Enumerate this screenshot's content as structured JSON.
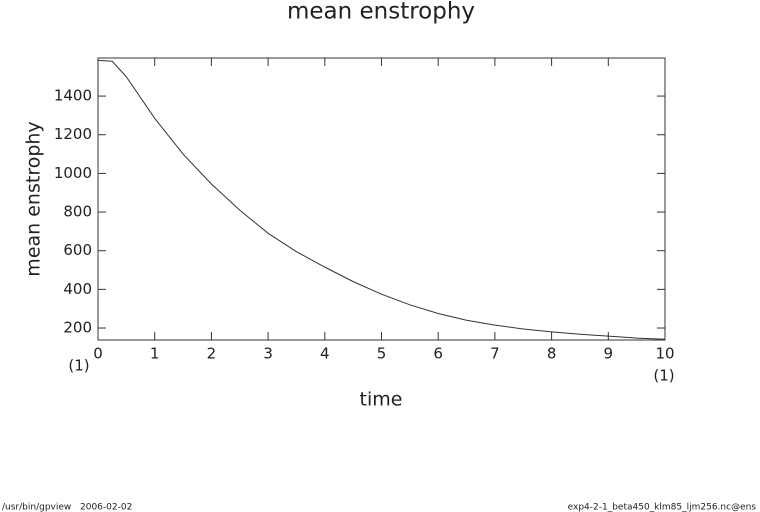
{
  "chart_data": {
    "type": "line",
    "title": "mean enstrophy",
    "x_label": "time",
    "y_label": "mean enstrophy",
    "x_unit": "(1)",
    "footer_program": "/usr/bin/gpview",
    "footer_date": "2006-02-02",
    "footer_file": "exp4-2-1_beta450_klm85_ljm256.nc@ens",
    "x": [
      0,
      0.25,
      0.5,
      1,
      1.5,
      2,
      2.5,
      3,
      3.5,
      4,
      4.5,
      5,
      5.5,
      6,
      6.5,
      7,
      7.5,
      8,
      8.5,
      9,
      9.5,
      10
    ],
    "series": [
      {
        "color": "#333333",
        "values": [
          1585,
          1580,
          1500,
          1285,
          1100,
          945,
          810,
          690,
          595,
          515,
          440,
          375,
          320,
          275,
          240,
          215,
          195,
          180,
          168,
          158,
          148,
          142
        ]
      }
    ],
    "xlim": [
      0,
      10
    ],
    "ylim": [
      138,
      1597
    ],
    "xticks": [
      0,
      1,
      2,
      3,
      4,
      5,
      6,
      7,
      8,
      9,
      10
    ],
    "yticks": [
      200,
      400,
      600,
      800,
      1000,
      1200,
      1400
    ]
  }
}
